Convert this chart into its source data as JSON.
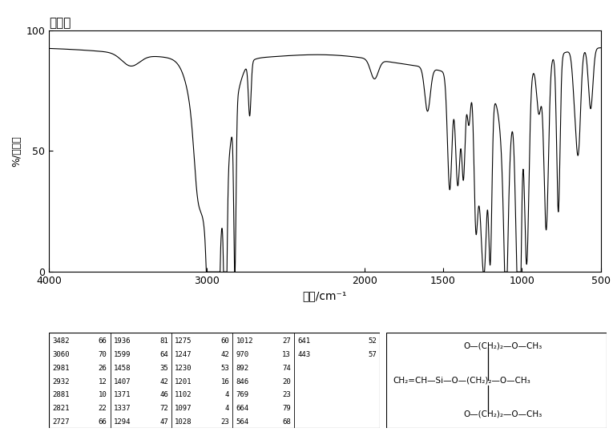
{
  "title": "薄膜法",
  "xlabel": "波数/cm⁻¹",
  "ylabel": "%/透过率",
  "xlim": [
    4000,
    500
  ],
  "ylim": [
    0,
    100
  ],
  "yticks": [
    0,
    50,
    100
  ],
  "xticks": [
    4000,
    3000,
    2000,
    1500,
    1000,
    500
  ],
  "background_color": "#ffffff",
  "line_color": "#000000",
  "table_data": [
    [
      "3482",
      "66",
      "1936",
      "81",
      "1275",
      "60",
      "1012",
      "27",
      "641",
      "52"
    ],
    [
      "3060",
      "70",
      "1599",
      "64",
      "1247",
      "42",
      "970",
      "13",
      "443",
      "57"
    ],
    [
      "2981",
      "26",
      "1458",
      "35",
      "1230",
      "53",
      "892",
      "74",
      "",
      ""
    ],
    [
      "2932",
      "12",
      "1407",
      "42",
      "1201",
      "16",
      "846",
      "20",
      "",
      ""
    ],
    [
      "2881",
      "10",
      "1371",
      "46",
      "1102",
      "4",
      "769",
      "23",
      "",
      ""
    ],
    [
      "2821",
      "22",
      "1337",
      "72",
      "1097",
      "4",
      "664",
      "79",
      "",
      ""
    ],
    [
      "2727",
      "66",
      "1294",
      "47",
      "1028",
      "23",
      "564",
      "68",
      "",
      ""
    ]
  ]
}
